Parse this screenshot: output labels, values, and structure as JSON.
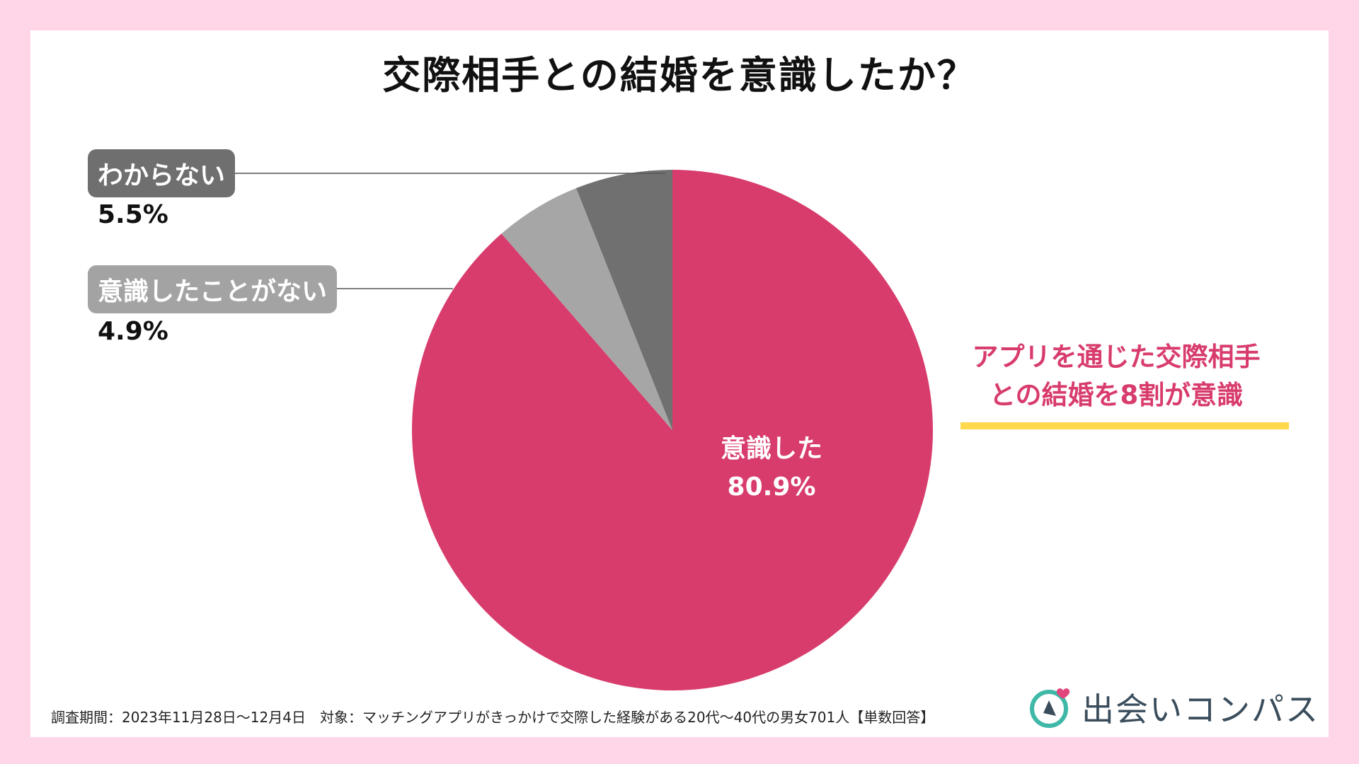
{
  "chart_data": {
    "type": "pie",
    "title": "交際相手との結婚を意識したか？",
    "slices": [
      {
        "label": "意識した",
        "value": 80.9,
        "display": "80.9%",
        "color": "#d83c6c"
      },
      {
        "label": "意識したことがない",
        "value": 4.9,
        "display": "4.9%",
        "color": "#a6a6a6"
      },
      {
        "label": "わからない",
        "value": 5.5,
        "display": "5.5%",
        "color": "#707070"
      }
    ]
  },
  "highlight": {
    "line1": "アプリを通じた交際相手",
    "line2": "との結婚を8割が意識"
  },
  "footnote": "調査期間：2023年11月28日〜12月4日　対象：マッチングアプリがきっかけで交際した経験がある20代〜40代の男女701人【単数回答】",
  "brand": {
    "name": "出会いコンパス",
    "accent": "#3fb8a8",
    "heart": "#e0457b"
  }
}
